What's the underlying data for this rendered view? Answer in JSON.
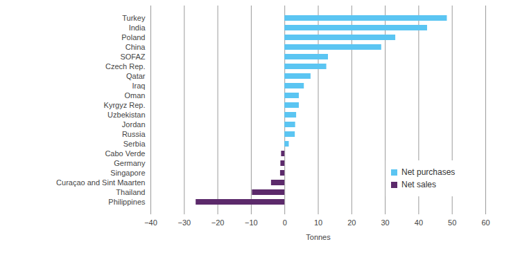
{
  "chart_data": {
    "type": "bar",
    "orientation": "horizontal",
    "categories": [
      "Turkey",
      "India",
      "Poland",
      "China",
      "SOFAZ",
      "Czech Rep.",
      "Qatar",
      "Iraq",
      "Oman",
      "Kyrgyz Rep.",
      "Uzbekistan",
      "Jordan",
      "Russia",
      "Serbia",
      "Cabo Verde",
      "Germany",
      "Singapore",
      "Curaçao and Sint Maarten",
      "Thailand",
      "Philippines"
    ],
    "series": [
      {
        "name": "Net purchases",
        "color": "#5bc5f2",
        "values": [
          48.5,
          42.6,
          33.1,
          28.9,
          13.0,
          12.5,
          7.8,
          5.8,
          4.3,
          4.3,
          3.5,
          3.2,
          3.1,
          1.3,
          null,
          null,
          null,
          null,
          null,
          null
        ]
      },
      {
        "name": "Net sales",
        "color": "#5c2a6b",
        "values": [
          null,
          null,
          null,
          null,
          null,
          null,
          null,
          null,
          null,
          null,
          null,
          null,
          null,
          null,
          -1.0,
          -1.2,
          -1.3,
          -4.0,
          -9.7,
          -26.5
        ]
      }
    ],
    "x_label": "Tonnes",
    "xlim": [
      -40,
      60
    ],
    "xticks": [
      -40,
      -30,
      -20,
      -10,
      0,
      10,
      20,
      30,
      40,
      50,
      60
    ],
    "grid": true,
    "legend": "bottom-right"
  }
}
